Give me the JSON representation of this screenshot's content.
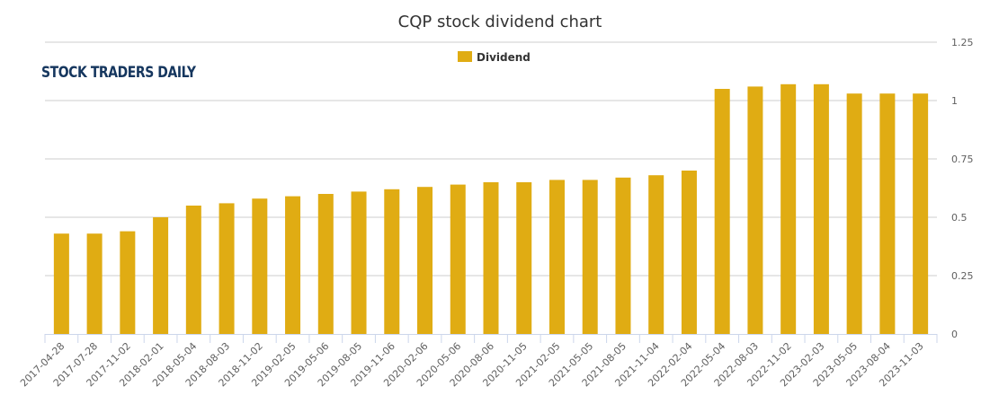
{
  "logo": {
    "text": "STOCK TRADERS DAILY"
  },
  "chart_data": {
    "type": "bar",
    "title": "CQP stock dividend chart",
    "xlabel": "",
    "ylabel": "",
    "ylim": [
      0,
      1.25
    ],
    "yticks": [
      0,
      0.25,
      0.5,
      0.75,
      1,
      1.25
    ],
    "ytick_labels": [
      "0",
      "0.25",
      "0.5",
      "0.75",
      "1",
      "1.25"
    ],
    "grid": true,
    "legend_position": "top-center",
    "colors": {
      "bar": "#e0ac13",
      "grid": "#cccccc",
      "axis": "#ccd6eb",
      "text": "#606060",
      "title": "#333333"
    },
    "categories": [
      "2017-04-28",
      "2017-07-28",
      "2017-11-02",
      "2018-02-01",
      "2018-05-04",
      "2018-08-03",
      "2018-11-02",
      "2019-02-05",
      "2019-05-06",
      "2019-08-05",
      "2019-11-06",
      "2020-02-06",
      "2020-05-06",
      "2020-08-06",
      "2020-11-05",
      "2021-02-05",
      "2021-05-05",
      "2021-08-05",
      "2021-11-04",
      "2022-02-04",
      "2022-05-04",
      "2022-08-03",
      "2022-11-02",
      "2023-02-03",
      "2023-05-05",
      "2023-08-04",
      "2023-11-03"
    ],
    "series": [
      {
        "name": "Dividend",
        "values": [
          0.43,
          0.43,
          0.44,
          0.5,
          0.55,
          0.56,
          0.58,
          0.59,
          0.6,
          0.61,
          0.62,
          0.63,
          0.64,
          0.65,
          0.65,
          0.66,
          0.66,
          0.67,
          0.68,
          0.7,
          1.05,
          1.06,
          1.07,
          1.07,
          1.03,
          1.03,
          1.03
        ]
      }
    ]
  }
}
